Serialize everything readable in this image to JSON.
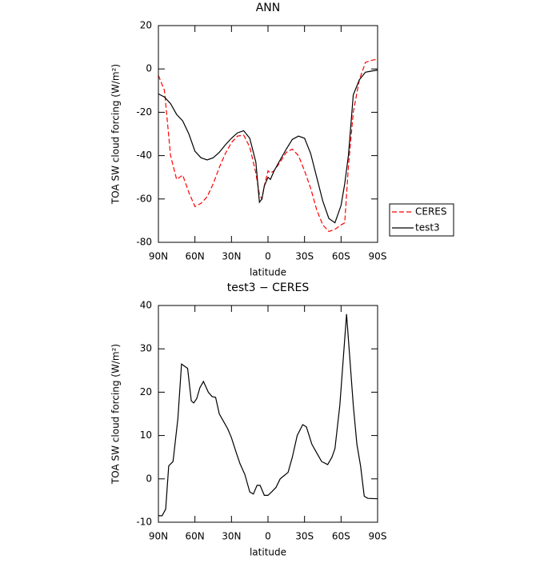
{
  "chart_data": [
    {
      "type": "line",
      "title": "ANN",
      "xlabel": "latitude",
      "ylabel": "TOA SW cloud forcing (W/m²)",
      "x": [
        90,
        85,
        80,
        75,
        70,
        65,
        60,
        55,
        50,
        45,
        40,
        35,
        30,
        25,
        20,
        15,
        10,
        7,
        5,
        3,
        0,
        -2,
        -5,
        -10,
        -15,
        -20,
        -25,
        -30,
        -35,
        -40,
        -45,
        -50,
        -55,
        -60,
        -63,
        -66,
        -70,
        -75,
        -80,
        -85,
        -90
      ],
      "series": [
        {
          "name": "CERES",
          "color": "#ff0000",
          "linestyle": "dashed",
          "values": [
            -3,
            -10,
            -40,
            -51,
            -49,
            -57,
            -63.5,
            -62,
            -59,
            -53,
            -45.5,
            -39,
            -34,
            -31,
            -30.5,
            -36,
            -48,
            -58,
            -60,
            -54,
            -47,
            -48,
            -47,
            -43,
            -38.5,
            -37,
            -40,
            -47,
            -55,
            -65,
            -72,
            -75,
            -74,
            -72,
            -71,
            -45,
            -20,
            -5,
            3,
            4,
            4.5
          ]
        },
        {
          "name": "test3",
          "color": "#000000",
          "linestyle": "solid",
          "values": [
            -11.5,
            -13,
            -16,
            -21,
            -24,
            -30,
            -38,
            -41,
            -42,
            -41,
            -38.5,
            -35,
            -32,
            -29.5,
            -28.5,
            -32,
            -43,
            -61.5,
            -60,
            -54,
            -50,
            -51,
            -47,
            -42,
            -37,
            -32.5,
            -31,
            -32,
            -39,
            -50,
            -61,
            -69,
            -71,
            -63,
            -53,
            -40,
            -12,
            -5,
            -1.5,
            -1,
            -0.5
          ]
        }
      ],
      "xlim": [
        90,
        -90
      ],
      "xticks": [
        {
          "value": 90,
          "label": "90N"
        },
        {
          "value": 60,
          "label": "60N"
        },
        {
          "value": 30,
          "label": "30N"
        },
        0,
        {
          "value": -30,
          "label": "30S"
        },
        {
          "value": -60,
          "label": "60S"
        },
        {
          "value": -90,
          "label": "90S"
        }
      ],
      "ylim": [
        -80,
        20
      ],
      "yticks": [
        20,
        0,
        -20,
        -40,
        -60,
        -80
      ],
      "legend": "right"
    },
    {
      "type": "line",
      "title": "test3 − CERES",
      "xlabel": "latitude",
      "ylabel": "TOA SW cloud forcing (W/m²)",
      "x": [
        90,
        87,
        84,
        81.5,
        78,
        74,
        71,
        66,
        63,
        61,
        58.5,
        56,
        53,
        49,
        46,
        43,
        40,
        36,
        33,
        30,
        26,
        23,
        19,
        15,
        12,
        9,
        6.5,
        3,
        0,
        -3,
        -6.5,
        -10,
        -13,
        -16.5,
        -20,
        -24,
        -28.5,
        -31.5,
        -36,
        -40,
        -44,
        -49,
        -52.5,
        -55,
        -59,
        -64.5,
        -70,
        -73,
        -76,
        -79,
        -82,
        -90
      ],
      "series": [
        {
          "name": "test3 − CERES",
          "color": "#000000",
          "linestyle": "solid",
          "values": [
            -8.5,
            -8.5,
            -7,
            3,
            4,
            14,
            26.5,
            25.5,
            18,
            17.5,
            18.5,
            21,
            22.5,
            20,
            19,
            18.8,
            15,
            13,
            11.5,
            9.5,
            6,
            3.5,
            1,
            -3,
            -3.5,
            -1.5,
            -1.5,
            -3.8,
            -3.8,
            -3,
            -2,
            0,
            0.7,
            1.5,
            5,
            10,
            12.5,
            12,
            8,
            6,
            4,
            3.3,
            5,
            7,
            17,
            38,
            17,
            8,
            3,
            -4,
            -4.5,
            -4.6
          ]
        }
      ],
      "xlim": [
        90,
        -90
      ],
      "xticks": [
        {
          "value": 90,
          "label": "90N"
        },
        {
          "value": 60,
          "label": "60N"
        },
        {
          "value": 30,
          "label": "30N"
        },
        0,
        {
          "value": -30,
          "label": "30S"
        },
        {
          "value": -60,
          "label": "60S"
        },
        {
          "value": -90,
          "label": "90S"
        }
      ],
      "ylim": [
        -10,
        40
      ],
      "yticks": [
        40,
        30,
        20,
        10,
        0,
        -10
      ]
    }
  ]
}
